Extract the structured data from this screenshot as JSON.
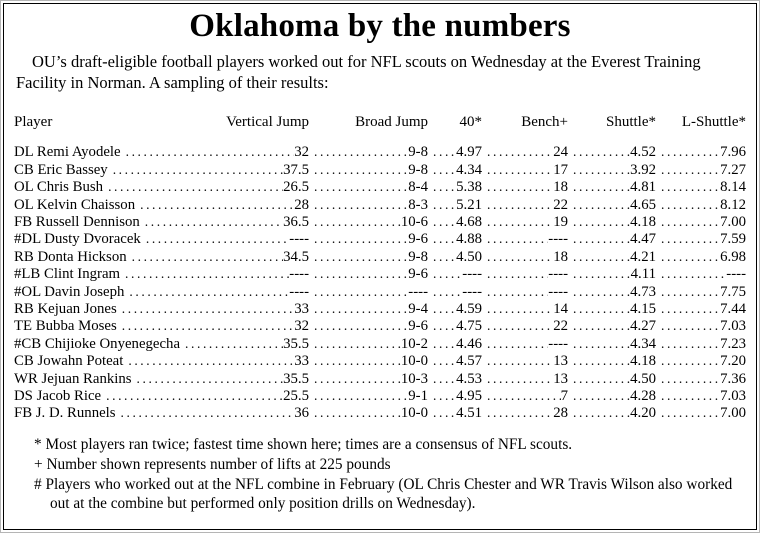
{
  "page": {
    "title": "Oklahoma by the numbers",
    "intro": "OU’s draft-eligible football players worked out for NFL scouts on Wednesday at the Everest Training Facility in Norman. A sampling of their results:"
  },
  "table": {
    "headers": [
      "Player",
      "Vertical Jump",
      "Broad Jump",
      "40*",
      "Bench+",
      "Shuttle*",
      "L-Shuttle*"
    ],
    "rows": [
      {
        "player": "DL Remi Ayodele",
        "vertical": "32",
        "broad": "9-8",
        "forty": "4.97",
        "bench": "24",
        "shuttle": "4.52",
        "lshuttle": "7.96"
      },
      {
        "player": "CB Eric Bassey",
        "vertical": "37.5",
        "broad": "9-8",
        "forty": "4.34",
        "bench": "17",
        "shuttle": "3.92",
        "lshuttle": "7.27"
      },
      {
        "player": "OL Chris Bush",
        "vertical": "26.5",
        "broad": "8-4",
        "forty": "5.38",
        "bench": "18",
        "shuttle": "4.81",
        "lshuttle": "8.14"
      },
      {
        "player": "OL Kelvin Chaisson",
        "vertical": "28",
        "broad": "8-3",
        "forty": "5.21",
        "bench": "22",
        "shuttle": "4.65",
        "lshuttle": "8.12"
      },
      {
        "player": "FB Russell Dennison",
        "vertical": "36.5",
        "broad": "10-6",
        "forty": "4.68",
        "bench": "19",
        "shuttle": "4.18",
        "lshuttle": "7.00"
      },
      {
        "player": "#DL Dusty Dvoracek",
        "vertical": "----",
        "broad": "9-6",
        "forty": "4.88",
        "bench": "----",
        "shuttle": "4.47",
        "lshuttle": "7.59"
      },
      {
        "player": "RB Donta Hickson",
        "vertical": "34.5",
        "broad": "9-8",
        "forty": "4.50",
        "bench": "18",
        "shuttle": "4.21",
        "lshuttle": "6.98"
      },
      {
        "player": "#LB Clint Ingram",
        "vertical": "----",
        "broad": "9-6",
        "forty": "----",
        "bench": "----",
        "shuttle": "4.11",
        "lshuttle": "----"
      },
      {
        "player": "#OL Davin Joseph",
        "vertical": "----",
        "broad": "----",
        "forty": "----",
        "bench": "----",
        "shuttle": "4.73",
        "lshuttle": "7.75"
      },
      {
        "player": "RB Kejuan Jones",
        "vertical": "33",
        "broad": "9-4",
        "forty": "4.59",
        "bench": "14",
        "shuttle": "4.15",
        "lshuttle": "7.44"
      },
      {
        "player": "TE Bubba Moses",
        "vertical": "32",
        "broad": "9-6",
        "forty": "4.75",
        "bench": "22",
        "shuttle": "4.27",
        "lshuttle": "7.03"
      },
      {
        "player": "#CB Chijioke Onyenegecha",
        "vertical": "35.5",
        "broad": "10-2",
        "forty": "4.46",
        "bench": "----",
        "shuttle": "4.34",
        "lshuttle": "7.23"
      },
      {
        "player": "CB Jowahn Poteat",
        "vertical": "33",
        "broad": "10-0",
        "forty": "4.57",
        "bench": "13",
        "shuttle": "4.18",
        "lshuttle": "7.20"
      },
      {
        "player": "WR Jejuan Rankins",
        "vertical": "35.5",
        "broad": "10-3",
        "forty": "4.53",
        "bench": "13",
        "shuttle": "4.50",
        "lshuttle": "7.36"
      },
      {
        "player": "DS Jacob Rice",
        "vertical": "25.5",
        "broad": "9-1",
        "forty": "4.95",
        "bench": "7",
        "shuttle": "4.28",
        "lshuttle": "7.03"
      },
      {
        "player": "FB J. D. Runnels",
        "vertical": "36",
        "broad": "10-0",
        "forty": "4.51",
        "bench": "28",
        "shuttle": "4.20",
        "lshuttle": "7.00"
      }
    ]
  },
  "footnotes": [
    "* Most players ran twice; fastest time shown here; times are a consensus of NFL scouts.",
    "+ Number shown represents number of lifts at 225 pounds",
    "# Players who worked out at the NFL combine in February (OL Chris Chester and WR Travis Wilson also worked out at the combine but performed only position drills on Wednesday)."
  ]
}
